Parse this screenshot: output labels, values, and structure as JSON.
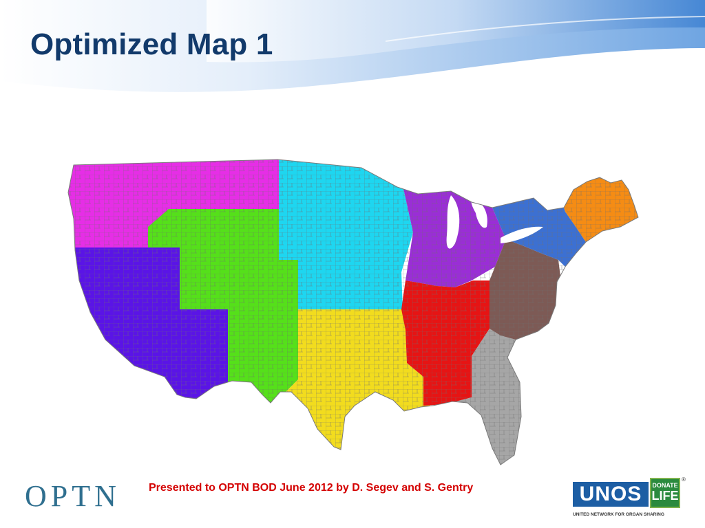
{
  "slide": {
    "title": "Optimized Map 1",
    "footer_text": "Presented to OPTN BOD June 2012 by D. Segev and S. Gentry"
  },
  "logos": {
    "optn": "OPTN",
    "unos": "UNOS",
    "donate_top": "DONATE",
    "donate_bottom": "LIFE",
    "registered_mark": "®",
    "unos_tagline": "UNITED NETWORK FOR ORGAN SHARING"
  },
  "map": {
    "subject": "Contiguous United States divided into 11 optimized organ-sharing districts drawn from county boundaries",
    "districts": [
      {
        "id": "pacific-northwest",
        "color": "#e62ee6",
        "area": "Washington, Oregon, Idaho, Montana"
      },
      {
        "id": "pacific-southwest",
        "color": "#5a14e6",
        "area": "California, Nevada, Arizona"
      },
      {
        "id": "mountain-west",
        "color": "#55e01a",
        "area": "Wyoming, Utah, Colorado, New Mexico"
      },
      {
        "id": "north-central",
        "color": "#1ed6f0",
        "area": "Dakotas, Minnesota, Nebraska, Iowa, Kansas"
      },
      {
        "id": "south-central",
        "color": "#f2dc1e",
        "area": "Oklahoma, Texas, Louisiana"
      },
      {
        "id": "great-lakes",
        "color": "#9a2ed6",
        "area": "Wisconsin, Michigan, Illinois, Indiana, Ohio"
      },
      {
        "id": "mid-south",
        "color": "#e61414",
        "area": "Missouri, Arkansas, Kentucky, Tennessee, Mississippi"
      },
      {
        "id": "southeast",
        "color": "#a6a6a6",
        "area": "Georgia, Alabama, Florida"
      },
      {
        "id": "mid-atlantic-south",
        "color": "#7d5a55",
        "area": "West Virginia, Virginia, Carolinas"
      },
      {
        "id": "northeast",
        "color": "#3c70d2",
        "area": "New York, Pennsylvania, New Jersey"
      },
      {
        "id": "new-england",
        "color": "#f58c14",
        "area": "New England"
      }
    ],
    "border_color": "#7a7a7a",
    "water_color": "#ffffff"
  },
  "theme": {
    "title_color": "#123a6b",
    "footer_color": "#d40000",
    "swoosh_light": "#e3eefa",
    "swoosh_dark": "#7fb0e6"
  }
}
